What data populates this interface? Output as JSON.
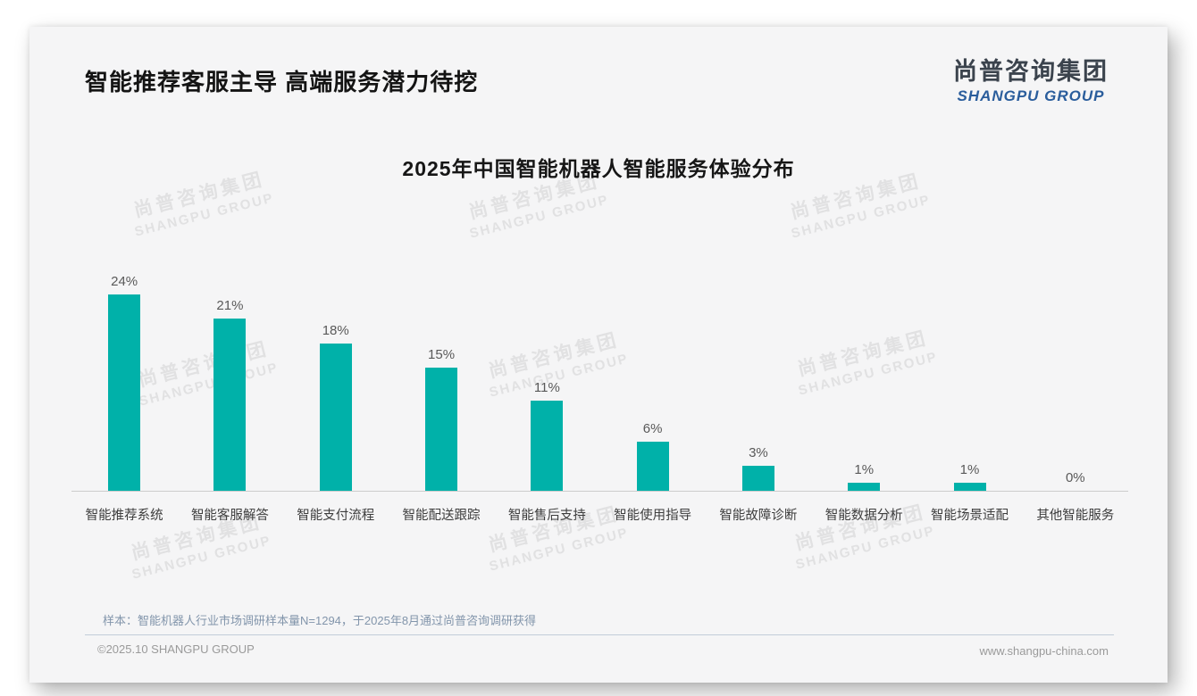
{
  "header": {
    "title": "智能推荐客服主导 高端服务潜力待挖"
  },
  "logo": {
    "cn": "尚普咨询集团",
    "en": "SHANGPU GROUP",
    "en_color": "#2a5d9c"
  },
  "watermark": {
    "cn": "尚普咨询集团",
    "en": "SHANGPU GROUP"
  },
  "chart_data": {
    "type": "bar",
    "title": "2025年中国智能机器人智能服务体验分布",
    "categories": [
      "智能推荐系统",
      "智能客服解答",
      "智能支付流程",
      "智能配送跟踪",
      "智能售后支持",
      "智能使用指导",
      "智能故障诊断",
      "智能数据分析",
      "智能场景适配",
      "其他智能服务"
    ],
    "values": [
      24,
      21,
      18,
      15,
      11,
      6,
      3,
      1,
      1,
      0
    ],
    "value_labels": [
      "24%",
      "21%",
      "18%",
      "15%",
      "11%",
      "6%",
      "3%",
      "1%",
      "1%",
      "0%"
    ],
    "unit": "%",
    "bar_color": "#00b1a9",
    "xlabel": "",
    "ylabel": "",
    "ylim": [
      0,
      26
    ],
    "grid": false,
    "legend": "none",
    "value_label_position": "above-bar",
    "axis_line_color": "#cccccc"
  },
  "footnote": {
    "text": "样本：智能机器人行业市场调研样本量N=1294，于2025年8月通过尚普咨询调研获得"
  },
  "footer": {
    "left": "©2025.10 SHANGPU GROUP",
    "right": "www.shangpu-china.com"
  }
}
